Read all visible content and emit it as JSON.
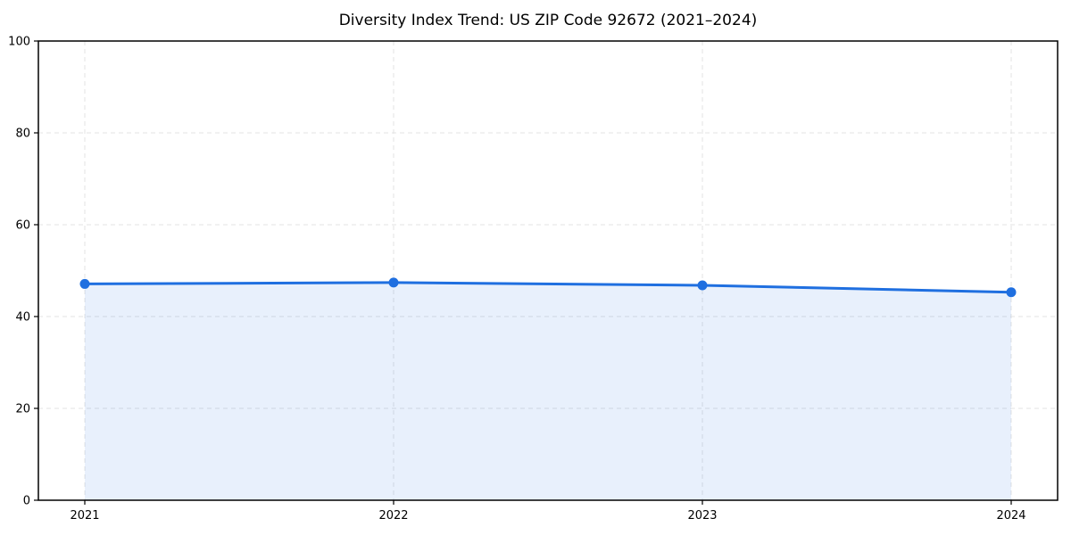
{
  "chart_data": {
    "type": "line",
    "title": "Diversity Index Trend: US ZIP Code 92672 (2021–2024)",
    "series_name": "Diversity Index",
    "x": [
      "2021",
      "2022",
      "2023",
      "2024"
    ],
    "values": [
      47.1,
      47.4,
      46.8,
      45.3
    ],
    "xlabel": "",
    "ylabel": "",
    "ylim": [
      0,
      100
    ],
    "yticks": [
      0,
      20,
      40,
      60,
      80,
      100
    ],
    "grid": true,
    "grid_style": "dashed",
    "legend_position": "none",
    "area_fill": true,
    "marker": "circle",
    "colors": {
      "line": "#1f6fe0",
      "area_fill": "rgba(31,111,224,0.10)",
      "grid": "#e3e3e3",
      "axis": "#000000",
      "text": "#000000",
      "background": "#ffffff"
    }
  }
}
